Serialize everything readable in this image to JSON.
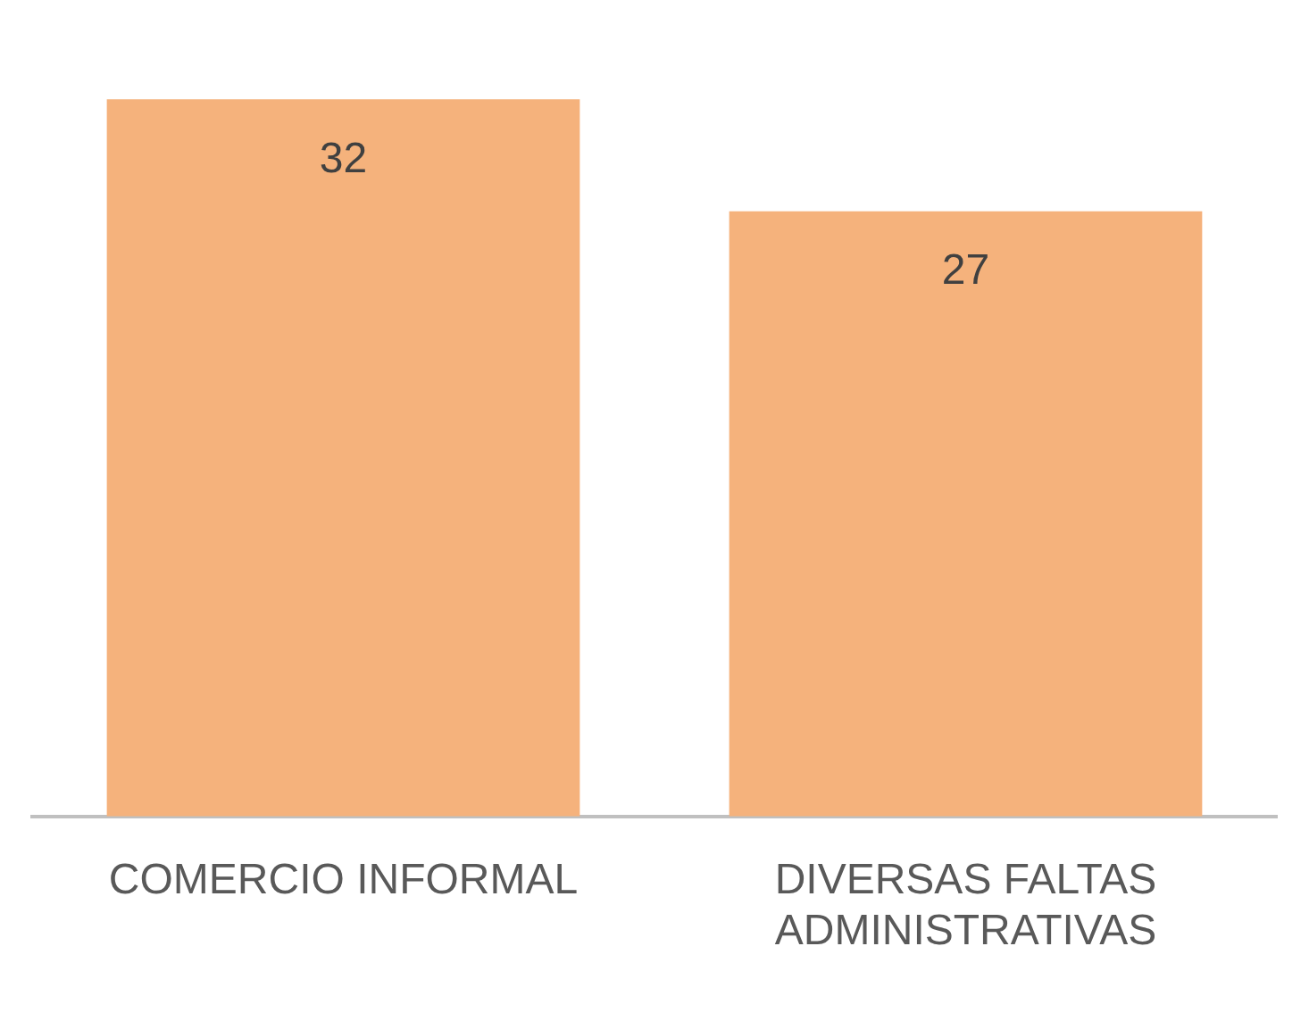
{
  "chart_data": {
    "type": "bar",
    "categories": [
      "COMERCIO INFORMAL",
      "DIVERSAS FALTAS ADMINISTRATIVAS"
    ],
    "values": [
      32,
      27
    ],
    "color": "#f5b27c",
    "data_labels": true,
    "grid": false,
    "legend": false,
    "tick_labels": "x"
  }
}
